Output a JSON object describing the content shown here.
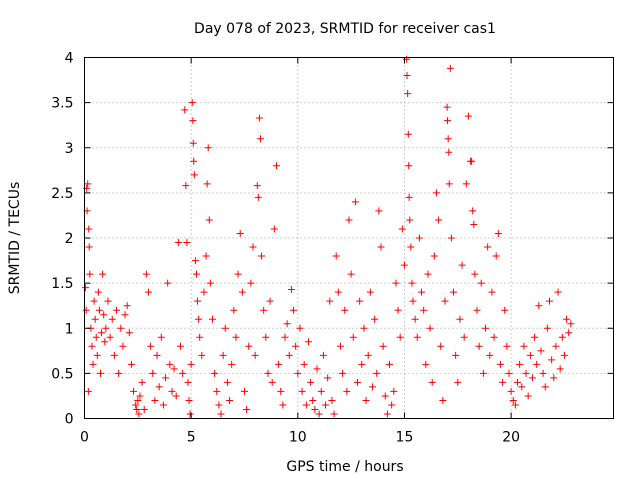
{
  "chart_data": {
    "type": "scatter",
    "title": "Day 078 of 2023, SRMTID for receiver cas1",
    "xlabel": "GPS time / hours",
    "ylabel": "SRMTID / TECUs",
    "xlim": [
      0,
      24.8
    ],
    "ylim": [
      0,
      4
    ],
    "x_ticks": [
      0,
      5,
      10,
      15,
      20
    ],
    "x_tick_labels": [
      "0",
      "5",
      "10",
      "15",
      "20"
    ],
    "y_ticks": [
      0,
      0.5,
      1,
      1.5,
      2,
      2.5,
      3,
      3.5,
      4
    ],
    "y_tick_labels": [
      "0",
      "0.5",
      "1",
      "1.5",
      "2",
      "2.5",
      "3",
      "3.5",
      "4"
    ],
    "grid": true,
    "marker": "plus",
    "series": [
      {
        "name": "SRMTID",
        "color": "#ff0000",
        "points": [
          [
            0.05,
            1.45
          ],
          [
            0.1,
            2.55
          ],
          [
            0.15,
            2.6
          ],
          [
            0.12,
            2.3
          ],
          [
            0.2,
            2.1
          ],
          [
            0.22,
            1.9
          ],
          [
            0.25,
            1.6
          ],
          [
            0.08,
            1.2
          ],
          [
            0.3,
            1.0
          ],
          [
            0.35,
            0.8
          ],
          [
            0.4,
            0.6
          ],
          [
            0.18,
            0.3
          ],
          [
            0.45,
            1.3
          ],
          [
            0.5,
            1.1
          ],
          [
            0.55,
            0.9
          ],
          [
            0.6,
            0.7
          ],
          [
            0.65,
            1.4
          ],
          [
            0.7,
            1.2
          ],
          [
            0.75,
            0.5
          ],
          [
            0.8,
            0.95
          ],
          [
            0.85,
            1.6
          ],
          [
            0.9,
            1.15
          ],
          [
            0.95,
            0.85
          ],
          [
            1.0,
            1.0
          ],
          [
            1.1,
            1.3
          ],
          [
            1.2,
            0.9
          ],
          [
            1.3,
            1.1
          ],
          [
            1.4,
            0.7
          ],
          [
            1.5,
            1.2
          ],
          [
            1.6,
            0.5
          ],
          [
            1.7,
            1.0
          ],
          [
            1.8,
            0.8
          ],
          [
            1.9,
            1.15
          ],
          [
            2.0,
            1.25
          ],
          [
            2.1,
            0.95
          ],
          [
            2.2,
            0.6
          ],
          [
            2.3,
            0.3
          ],
          [
            2.4,
            0.15
          ],
          [
            2.45,
            0.1
          ],
          [
            2.5,
            0.2
          ],
          [
            2.55,
            0.05
          ],
          [
            2.6,
            0.25
          ],
          [
            2.7,
            0.4
          ],
          [
            2.8,
            0.1
          ],
          [
            2.9,
            1.6
          ],
          [
            3.0,
            1.4
          ],
          [
            3.1,
            0.8
          ],
          [
            3.2,
            0.5
          ],
          [
            3.3,
            0.2
          ],
          [
            3.4,
            0.7
          ],
          [
            3.5,
            0.35
          ],
          [
            3.6,
            0.9
          ],
          [
            3.7,
            0.15
          ],
          [
            3.8,
            0.45
          ],
          [
            3.9,
            1.5
          ],
          [
            4.0,
            0.6
          ],
          [
            4.1,
            0.3
          ],
          [
            4.2,
            0.55
          ],
          [
            4.3,
            0.25
          ],
          [
            4.4,
            1.95
          ],
          [
            4.5,
            0.8
          ],
          [
            4.6,
            0.5
          ],
          [
            4.7,
            3.42
          ],
          [
            4.75,
            2.58
          ],
          [
            4.8,
            1.95
          ],
          [
            4.85,
            0.4
          ],
          [
            4.9,
            0.2
          ],
          [
            4.95,
            0.05
          ],
          [
            5.0,
            0.6
          ],
          [
            5.05,
            3.5
          ],
          [
            5.08,
            3.3
          ],
          [
            5.1,
            3.05
          ],
          [
            5.12,
            2.85
          ],
          [
            5.15,
            2.7
          ],
          [
            5.2,
            1.75
          ],
          [
            5.25,
            1.6
          ],
          [
            5.3,
            1.3
          ],
          [
            5.35,
            1.1
          ],
          [
            5.4,
            0.9
          ],
          [
            5.5,
            0.7
          ],
          [
            5.6,
            1.4
          ],
          [
            5.7,
            1.8
          ],
          [
            5.75,
            2.6
          ],
          [
            5.8,
            3.0
          ],
          [
            5.85,
            2.2
          ],
          [
            5.9,
            1.5
          ],
          [
            6.0,
            1.1
          ],
          [
            6.1,
            0.5
          ],
          [
            6.2,
            0.3
          ],
          [
            6.3,
            0.15
          ],
          [
            6.4,
            0.05
          ],
          [
            6.5,
            0.7
          ],
          [
            6.6,
            1.0
          ],
          [
            6.7,
            0.4
          ],
          [
            6.8,
            0.2
          ],
          [
            6.9,
            0.6
          ],
          [
            7.0,
            1.2
          ],
          [
            7.1,
            0.9
          ],
          [
            7.2,
            1.6
          ],
          [
            7.3,
            2.05
          ],
          [
            7.4,
            1.4
          ],
          [
            7.5,
            0.3
          ],
          [
            7.6,
            0.1
          ],
          [
            7.7,
            0.8
          ],
          [
            7.8,
            1.5
          ],
          [
            7.9,
            1.9
          ],
          [
            8.0,
            0.7
          ],
          [
            8.1,
            2.58
          ],
          [
            8.15,
            2.45
          ],
          [
            8.2,
            3.33
          ],
          [
            8.25,
            3.1
          ],
          [
            8.3,
            1.8
          ],
          [
            8.4,
            1.2
          ],
          [
            8.5,
            0.9
          ],
          [
            8.6,
            0.5
          ],
          [
            8.7,
            1.3
          ],
          [
            8.8,
            0.4
          ],
          [
            8.9,
            2.1
          ],
          [
            9.0,
            2.8
          ],
          [
            9.1,
            0.6
          ],
          [
            9.2,
            0.3
          ],
          [
            9.3,
            0.15
          ],
          [
            9.4,
            0.9
          ],
          [
            9.5,
            1.05
          ],
          [
            9.6,
            0.7
          ],
          [
            9.7,
            1.43
          ],
          [
            9.8,
            1.2
          ],
          [
            9.9,
            0.8
          ],
          [
            10.0,
            0.5
          ],
          [
            10.1,
            1.0
          ],
          [
            10.2,
            0.3
          ],
          [
            10.3,
            0.6
          ],
          [
            10.4,
            0.15
          ],
          [
            10.5,
            0.85
          ],
          [
            10.6,
            0.4
          ],
          [
            10.7,
            0.2
          ],
          [
            10.8,
            0.1
          ],
          [
            10.9,
            0.55
          ],
          [
            11.0,
            0.05
          ],
          [
            11.1,
            0.3
          ],
          [
            11.2,
            0.7
          ],
          [
            11.3,
            0.15
          ],
          [
            11.4,
            0.45
          ],
          [
            11.5,
            1.3
          ],
          [
            11.6,
            0.2
          ],
          [
            11.7,
            0.05
          ],
          [
            11.8,
            1.8
          ],
          [
            11.9,
            1.4
          ],
          [
            12.0,
            0.8
          ],
          [
            12.1,
            0.5
          ],
          [
            12.2,
            1.2
          ],
          [
            12.3,
            0.3
          ],
          [
            12.4,
            2.2
          ],
          [
            12.5,
            1.6
          ],
          [
            12.6,
            0.9
          ],
          [
            12.7,
            2.4
          ],
          [
            12.8,
            0.4
          ],
          [
            12.9,
            1.3
          ],
          [
            13.0,
            0.6
          ],
          [
            13.1,
            1.0
          ],
          [
            13.2,
            0.2
          ],
          [
            13.3,
            0.7
          ],
          [
            13.4,
            1.4
          ],
          [
            13.5,
            0.35
          ],
          [
            13.6,
            1.1
          ],
          [
            13.7,
            0.5
          ],
          [
            13.8,
            2.3
          ],
          [
            13.9,
            1.9
          ],
          [
            14.0,
            0.8
          ],
          [
            14.1,
            0.25
          ],
          [
            14.2,
            0.05
          ],
          [
            14.3,
            0.6
          ],
          [
            14.4,
            0.15
          ],
          [
            14.5,
            0.3
          ],
          [
            14.6,
            1.5
          ],
          [
            14.7,
            1.2
          ],
          [
            14.8,
            0.9
          ],
          [
            14.9,
            2.1
          ],
          [
            15.0,
            1.7
          ],
          [
            15.1,
            3.98
          ],
          [
            15.12,
            3.8
          ],
          [
            15.15,
            3.6
          ],
          [
            15.18,
            3.15
          ],
          [
            15.2,
            2.8
          ],
          [
            15.22,
            2.45
          ],
          [
            15.25,
            2.2
          ],
          [
            15.3,
            1.9
          ],
          [
            15.35,
            1.5
          ],
          [
            15.4,
            1.3
          ],
          [
            15.5,
            1.1
          ],
          [
            15.6,
            0.9
          ],
          [
            15.7,
            2.0
          ],
          [
            15.8,
            1.4
          ],
          [
            15.9,
            1.2
          ],
          [
            16.0,
            0.6
          ],
          [
            16.1,
            1.6
          ],
          [
            16.2,
            1.0
          ],
          [
            16.3,
            0.4
          ],
          [
            16.4,
            1.8
          ],
          [
            16.5,
            2.5
          ],
          [
            16.6,
            2.2
          ],
          [
            16.7,
            0.8
          ],
          [
            16.8,
            0.2
          ],
          [
            16.9,
            1.3
          ],
          [
            17.0,
            3.45
          ],
          [
            17.02,
            3.3
          ],
          [
            17.05,
            3.1
          ],
          [
            17.08,
            2.95
          ],
          [
            17.1,
            2.6
          ],
          [
            17.15,
            3.88
          ],
          [
            17.2,
            2.0
          ],
          [
            17.3,
            1.4
          ],
          [
            17.4,
            0.7
          ],
          [
            17.5,
            0.4
          ],
          [
            17.6,
            1.1
          ],
          [
            17.7,
            1.7
          ],
          [
            17.8,
            0.9
          ],
          [
            17.9,
            2.6
          ],
          [
            18.0,
            3.35
          ],
          [
            18.1,
            2.85
          ],
          [
            18.15,
            2.85
          ],
          [
            18.2,
            2.3
          ],
          [
            18.25,
            2.15
          ],
          [
            18.3,
            1.6
          ],
          [
            18.4,
            1.2
          ],
          [
            18.5,
            0.8
          ],
          [
            18.6,
            1.5
          ],
          [
            18.7,
            0.5
          ],
          [
            18.8,
            1.0
          ],
          [
            18.9,
            1.9
          ],
          [
            19.0,
            0.7
          ],
          [
            19.1,
            1.4
          ],
          [
            19.2,
            0.9
          ],
          [
            19.3,
            1.8
          ],
          [
            19.4,
            2.05
          ],
          [
            19.5,
            0.6
          ],
          [
            19.6,
            0.4
          ],
          [
            19.7,
            1.2
          ],
          [
            19.8,
            0.8
          ],
          [
            19.9,
            0.5
          ],
          [
            20.0,
            0.3
          ],
          [
            20.1,
            0.2
          ],
          [
            20.2,
            0.15
          ],
          [
            20.3,
            0.4
          ],
          [
            20.4,
            0.6
          ],
          [
            20.5,
            0.35
          ],
          [
            20.6,
            0.8
          ],
          [
            20.7,
            0.5
          ],
          [
            20.8,
            0.25
          ],
          [
            20.9,
            0.7
          ],
          [
            21.0,
            0.45
          ],
          [
            21.1,
            0.9
          ],
          [
            21.2,
            0.6
          ],
          [
            21.3,
            1.25
          ],
          [
            21.4,
            0.75
          ],
          [
            21.5,
            0.5
          ],
          [
            21.6,
            0.35
          ],
          [
            21.7,
            1.0
          ],
          [
            21.8,
            1.3
          ],
          [
            21.9,
            0.65
          ],
          [
            22.0,
            0.45
          ],
          [
            22.1,
            0.8
          ],
          [
            22.2,
            1.4
          ],
          [
            22.3,
            0.55
          ],
          [
            22.4,
            0.9
          ],
          [
            22.5,
            0.7
          ],
          [
            22.6,
            1.1
          ],
          [
            22.7,
            0.95
          ],
          [
            22.8,
            1.05
          ]
        ]
      }
    ]
  }
}
